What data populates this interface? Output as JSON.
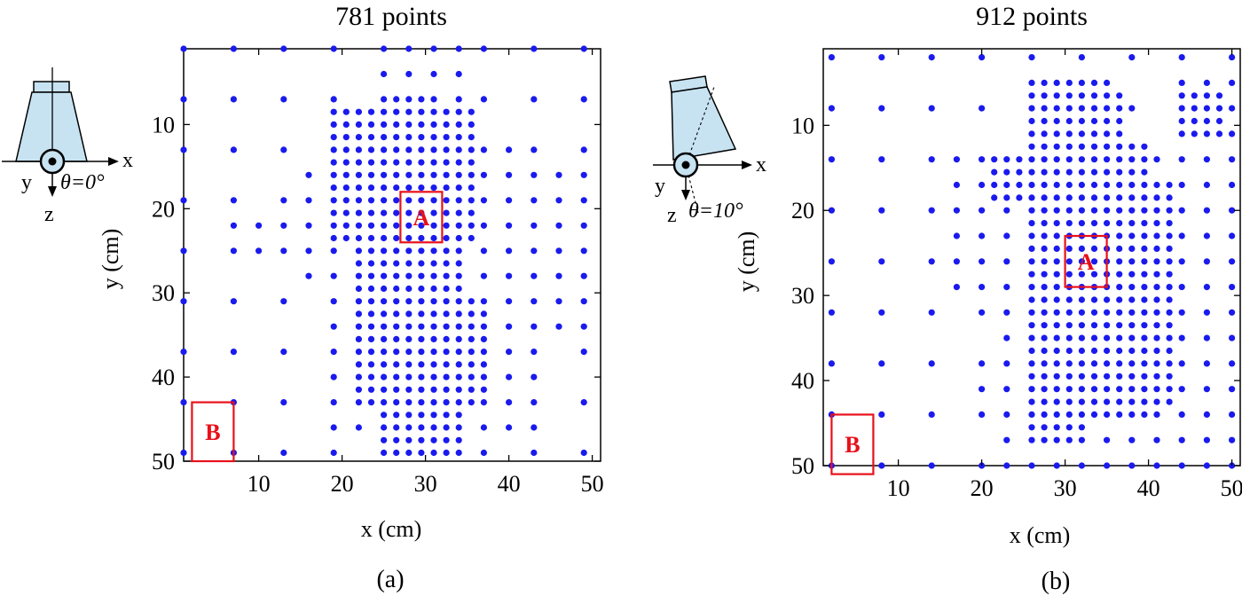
{
  "colors": {
    "points": "#1a1aee",
    "boxes": "#e8101a"
  },
  "panels": [
    {
      "id": "a",
      "caption": "(a)",
      "icon": {
        "name": "probe-theta-0-icon",
        "label_x": "x",
        "label_y": "y",
        "label_z": "z",
        "label_theta": "θ=0°"
      },
      "chart_data": {
        "type": "scatter",
        "title": "781 points",
        "xlabel": "x (cm)",
        "ylabel": "y (cm)",
        "xlim": [
          1,
          51
        ],
        "ylim": [
          1,
          50
        ],
        "y_axis_inverted": true,
        "xticks": [
          10,
          20,
          30,
          40,
          50
        ],
        "yticks": [
          10,
          20,
          30,
          40,
          50
        ],
        "grid": false,
        "legend": "none",
        "point_color": "#1a1aee",
        "point_rule": "adaptive sampling: coarse points on a 6.0 cm grid everywhere; denser points on a 3.0 cm and 1.5 cm grid inside the refined regions listed below (each region = [x0, x1, y0, y1] in cm)",
        "coarse_step": 6.0,
        "coarse_x": [
          1,
          7,
          13,
          19,
          25,
          31,
          37,
          43,
          49
        ],
        "coarse_y": [
          1,
          7,
          13,
          19,
          25,
          31,
          37,
          43,
          49
        ],
        "refined_3cm": [
          [
            18,
            44,
            11,
            46
          ],
          [
            15,
            26,
            16,
            28
          ],
          [
            7,
            16,
            21,
            26
          ],
          [
            41,
            50,
            16,
            34
          ],
          [
            24,
            35,
            1,
            10
          ]
        ],
        "refined_1_5cm": [
          [
            19,
            36,
            8,
            24
          ],
          [
            22,
            35,
            24,
            30
          ],
          [
            21,
            37,
            30,
            44
          ],
          [
            24,
            35,
            44,
            50
          ],
          [
            26,
            30,
            6,
            9
          ]
        ],
        "boxes": [
          {
            "label": "A",
            "x": [
              27,
              32
            ],
            "y": [
              18,
              24
            ]
          },
          {
            "label": "B",
            "x": [
              2,
              7
            ],
            "y": [
              43,
              50
            ]
          }
        ]
      }
    },
    {
      "id": "b",
      "caption": "(b)",
      "icon": {
        "name": "probe-theta-10-icon",
        "label_x": "x",
        "label_y": "y",
        "label_z": "z",
        "label_theta": "θ=10°"
      },
      "chart_data": {
        "type": "scatter",
        "title": "912 points",
        "xlabel": "x (cm)",
        "ylabel": "y (cm)",
        "xlim": [
          1,
          51
        ],
        "ylim": [
          1,
          50
        ],
        "y_axis_inverted": true,
        "xticks": [
          10,
          20,
          30,
          40,
          50
        ],
        "yticks": [
          10,
          20,
          30,
          40,
          50
        ],
        "grid": false,
        "legend": "none",
        "point_color": "#1a1aee",
        "point_rule": "adaptive sampling: coarse points on a 6.0 cm grid everywhere; denser points on a 3.0 cm and 1.5 cm grid inside the refined regions listed below (each region = [x0, x1, y0, y1] in cm)",
        "coarse_step": 6.0,
        "coarse_x": [
          2,
          8,
          14,
          20,
          26,
          32,
          38,
          44,
          50
        ],
        "coarse_y": [
          2,
          8,
          14,
          20,
          26,
          32,
          38,
          44,
          50
        ],
        "refined_3cm": [
          [
            16,
            23,
            13,
            30
          ],
          [
            22,
            47,
            12,
            50
          ],
          [
            43,
            51,
            4,
            30
          ],
          [
            40,
            51,
            34,
            50
          ],
          [
            18,
            25,
            38,
            46
          ]
        ],
        "refined_1_5cm": [
          [
            25,
            33,
            5,
            47
          ],
          [
            33,
            36,
            5,
            45
          ],
          [
            36,
            40,
            12,
            44
          ],
          [
            39,
            43,
            17,
            43
          ],
          [
            21,
            25,
            14,
            19
          ],
          [
            35,
            37,
            6,
            12
          ],
          [
            43,
            49,
            6,
            12
          ]
        ],
        "boxes": [
          {
            "label": "A",
            "x": [
              30,
              35
            ],
            "y": [
              23,
              29
            ]
          },
          {
            "label": "B",
            "x": [
              2,
              7
            ],
            "y": [
              44,
              51
            ]
          }
        ]
      }
    }
  ]
}
